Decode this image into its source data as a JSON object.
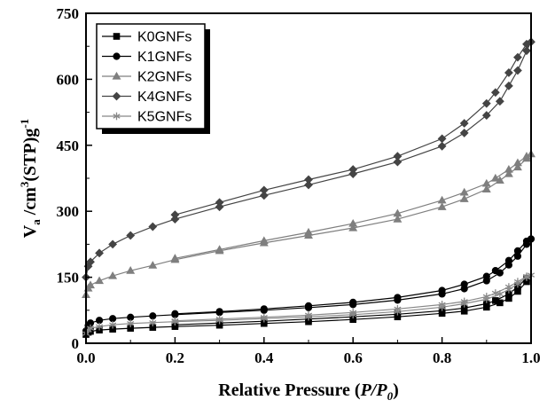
{
  "chart_data": {
    "type": "line",
    "title": "",
    "xlabel": "Relative Pressure (P/P0)",
    "xlabel_parts": {
      "prefix": "Relative Pressure (",
      "p": "P",
      "slash": "/",
      "p0": "P",
      "p0_sub": "0",
      "suffix": ")"
    },
    "ylabel": "Va/cm3(STP)g-1",
    "ylabel_parts": {
      "v": "V",
      "v_sub": "a",
      "mid": " /cm",
      "sup3": "3",
      "rest": "(STP)g",
      "sup_neg1": "-1"
    },
    "xlim": [
      0.0,
      1.0
    ],
    "ylim": [
      0,
      750
    ],
    "x_ticks": [
      "0.0",
      "0.2",
      "0.4",
      "0.6",
      "0.8",
      "1.0"
    ],
    "y_ticks": [
      "0",
      "150",
      "300",
      "450",
      "600",
      "750"
    ],
    "grid": false,
    "legend_position": "top-left",
    "series": [
      {
        "name": "K0GNFs",
        "color": "#000000",
        "marker": "square",
        "adsorption": {
          "x": [
            0.0,
            0.005,
            0.01,
            0.03,
            0.06,
            0.1,
            0.15,
            0.2,
            0.3,
            0.4,
            0.5,
            0.6,
            0.7,
            0.8,
            0.85,
            0.9,
            0.93,
            0.95,
            0.97,
            0.99
          ],
          "y": [
            20,
            25,
            27,
            30,
            32,
            34,
            36,
            38,
            41,
            45,
            49,
            54,
            60,
            68,
            73,
            82,
            92,
            102,
            118,
            140
          ]
        },
        "desorption": {
          "x": [
            0.99,
            0.97,
            0.95,
            0.92,
            0.9,
            0.85,
            0.8,
            0.7,
            0.6,
            0.5,
            0.4,
            0.3,
            0.2
          ],
          "y": [
            148,
            128,
            112,
            97,
            90,
            80,
            74,
            66,
            60,
            55,
            50,
            46,
            42
          ]
        }
      },
      {
        "name": "K1GNFs",
        "color": "#000000",
        "marker": "circle",
        "adsorption": {
          "x": [
            0.0,
            0.005,
            0.01,
            0.03,
            0.06,
            0.1,
            0.15,
            0.2,
            0.3,
            0.4,
            0.5,
            0.6,
            0.7,
            0.8,
            0.85,
            0.9,
            0.93,
            0.95,
            0.97,
            0.99,
            1.0
          ],
          "y": [
            28,
            40,
            46,
            52,
            56,
            59,
            62,
            65,
            70,
            75,
            81,
            88,
            98,
            112,
            124,
            142,
            160,
            178,
            198,
            225,
            237
          ]
        },
        "desorption": {
          "x": [
            0.99,
            0.97,
            0.95,
            0.92,
            0.9,
            0.85,
            0.8,
            0.7,
            0.6,
            0.5,
            0.4,
            0.3,
            0.2
          ],
          "y": [
            232,
            210,
            188,
            165,
            152,
            134,
            120,
            104,
            93,
            85,
            78,
            72,
            67
          ]
        }
      },
      {
        "name": "K2GNFs",
        "color": "#7f7f7f",
        "marker": "triangle",
        "adsorption": {
          "x": [
            0.0,
            0.005,
            0.01,
            0.03,
            0.06,
            0.1,
            0.15,
            0.2,
            0.3,
            0.4,
            0.5,
            0.6,
            0.7,
            0.8,
            0.85,
            0.9,
            0.93,
            0.95,
            0.97,
            0.99,
            1.0
          ],
          "y": [
            110,
            125,
            132,
            142,
            153,
            165,
            177,
            190,
            210,
            228,
            245,
            262,
            282,
            310,
            328,
            350,
            370,
            385,
            400,
            420,
            430
          ]
        },
        "desorption": {
          "x": [
            0.99,
            0.97,
            0.95,
            0.92,
            0.9,
            0.85,
            0.8,
            0.7,
            0.6,
            0.5,
            0.4,
            0.3,
            0.2
          ],
          "y": [
            425,
            410,
            395,
            375,
            363,
            343,
            325,
            295,
            272,
            252,
            233,
            213,
            193
          ]
        }
      },
      {
        "name": "K4GNFs",
        "color": "#444444",
        "marker": "diamond",
        "adsorption": {
          "x": [
            0.0,
            0.005,
            0.01,
            0.03,
            0.06,
            0.1,
            0.15,
            0.2,
            0.3,
            0.4,
            0.5,
            0.6,
            0.7,
            0.8,
            0.85,
            0.9,
            0.93,
            0.95,
            0.97,
            0.99,
            1.0
          ],
          "y": [
            150,
            175,
            185,
            205,
            225,
            245,
            265,
            282,
            310,
            336,
            360,
            385,
            412,
            448,
            478,
            518,
            550,
            585,
            620,
            665,
            685
          ]
        },
        "desorption": {
          "x": [
            0.99,
            0.97,
            0.95,
            0.92,
            0.9,
            0.85,
            0.8,
            0.7,
            0.6,
            0.5,
            0.4,
            0.3,
            0.2
          ],
          "y": [
            680,
            650,
            615,
            570,
            545,
            500,
            465,
            425,
            395,
            372,
            348,
            320,
            292
          ]
        }
      },
      {
        "name": "K5GNFs",
        "color": "#888888",
        "marker": "star",
        "adsorption": {
          "x": [
            0.0,
            0.005,
            0.01,
            0.03,
            0.06,
            0.1,
            0.15,
            0.2,
            0.3,
            0.4,
            0.5,
            0.6,
            0.7,
            0.8,
            0.85,
            0.9,
            0.93,
            0.95,
            0.97,
            0.99,
            1.0
          ],
          "y": [
            22,
            30,
            34,
            38,
            42,
            45,
            47,
            49,
            52,
            56,
            60,
            65,
            72,
            82,
            90,
            100,
            112,
            122,
            135,
            150,
            155
          ]
        },
        "desorption": {
          "x": [
            0.99,
            0.97,
            0.95,
            0.92,
            0.9,
            0.85,
            0.8,
            0.7,
            0.6,
            0.5,
            0.4,
            0.3,
            0.2
          ],
          "y": [
            152,
            140,
            128,
            114,
            106,
            95,
            88,
            78,
            70,
            64,
            59,
            55,
            51
          ]
        }
      }
    ]
  }
}
